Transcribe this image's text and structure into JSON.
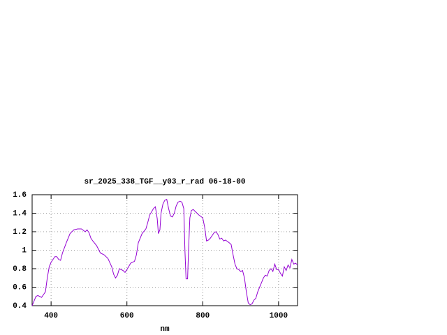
{
  "chart_data": {
    "type": "line",
    "title": "sr_2025_338_TGF__y03_r_rad 06-18-00",
    "x_label": "nm",
    "x": [
      350,
      355,
      360,
      365,
      370,
      375,
      380,
      385,
      390,
      395,
      400,
      405,
      410,
      415,
      420,
      425,
      430,
      440,
      450,
      460,
      470,
      480,
      490,
      495,
      500,
      505,
      510,
      520,
      530,
      540,
      550,
      560,
      565,
      570,
      575,
      580,
      590,
      595,
      600,
      610,
      620,
      625,
      630,
      640,
      650,
      655,
      660,
      670,
      675,
      680,
      683,
      687,
      690,
      695,
      700,
      705,
      710,
      715,
      720,
      725,
      730,
      735,
      740,
      745,
      750,
      753,
      756,
      760,
      763,
      766,
      770,
      775,
      780,
      790,
      800,
      805,
      810,
      815,
      820,
      830,
      835,
      840,
      845,
      850,
      855,
      860,
      870,
      875,
      880,
      885,
      890,
      895,
      900,
      905,
      910,
      915,
      920,
      925,
      930,
      935,
      940,
      945,
      950,
      955,
      960,
      965,
      970,
      975,
      980,
      985,
      990,
      995,
      1000,
      1005,
      1010,
      1015,
      1020,
      1025,
      1030,
      1035,
      1040,
      1045,
      1050
    ],
    "values": [
      0.4,
      0.45,
      0.5,
      0.51,
      0.5,
      0.49,
      0.52,
      0.55,
      0.7,
      0.82,
      0.87,
      0.9,
      0.93,
      0.93,
      0.9,
      0.89,
      0.97,
      1.08,
      1.18,
      1.22,
      1.23,
      1.23,
      1.2,
      1.22,
      1.19,
      1.13,
      1.1,
      1.05,
      0.97,
      0.95,
      0.91,
      0.82,
      0.74,
      0.7,
      0.73,
      0.8,
      0.78,
      0.76,
      0.79,
      0.86,
      0.88,
      0.95,
      1.08,
      1.18,
      1.23,
      1.3,
      1.38,
      1.45,
      1.47,
      1.34,
      1.18,
      1.22,
      1.4,
      1.5,
      1.54,
      1.55,
      1.45,
      1.37,
      1.36,
      1.4,
      1.48,
      1.52,
      1.53,
      1.52,
      1.45,
      1.0,
      0.69,
      0.69,
      1.05,
      1.35,
      1.43,
      1.44,
      1.42,
      1.38,
      1.35,
      1.25,
      1.1,
      1.11,
      1.13,
      1.19,
      1.2,
      1.17,
      1.12,
      1.13,
      1.1,
      1.11,
      1.08,
      1.06,
      0.95,
      0.85,
      0.8,
      0.79,
      0.77,
      0.78,
      0.7,
      0.55,
      0.43,
      0.41,
      0.42,
      0.46,
      0.48,
      0.55,
      0.6,
      0.65,
      0.7,
      0.73,
      0.72,
      0.78,
      0.8,
      0.77,
      0.85,
      0.79,
      0.79,
      0.75,
      0.72,
      0.82,
      0.78,
      0.84,
      0.81,
      0.9,
      0.85,
      0.86,
      0.84
    ],
    "color": "#9400d3",
    "xlim": [
      350,
      1050
    ],
    "xticks": [
      400,
      600,
      800,
      1000
    ],
    "ylim": [
      0.4,
      1.6
    ],
    "yticks": [
      0.4,
      0.6,
      0.8,
      1,
      1.2,
      1.4,
      1.6
    ],
    "grid": true
  }
}
